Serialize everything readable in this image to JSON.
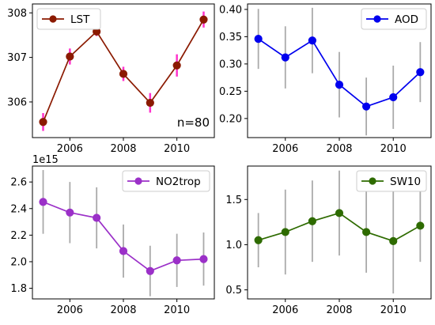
{
  "chart_data": [
    {
      "id": "lst",
      "type": "line",
      "x": [
        2005,
        2006,
        2007,
        2008,
        2009,
        2010,
        2011
      ],
      "series": [
        {
          "name": "LST",
          "values": [
            305.55,
            307.02,
            307.58,
            306.63,
            305.98,
            306.82,
            307.85
          ],
          "err": [
            0.2,
            0.18,
            0.1,
            0.16,
            0.22,
            0.25,
            0.18
          ]
        }
      ],
      "xticks": [
        2006,
        2008,
        2010
      ],
      "xtick_labels": [
        "2006",
        "2008",
        "2010"
      ],
      "yticks": [
        306,
        307,
        308
      ],
      "ytick_labels": [
        "306",
        "307",
        "308"
      ],
      "ylim": [
        305.2,
        308.2
      ],
      "xlim": [
        2004.6,
        2011.4
      ],
      "annotation": "n=80",
      "color": "#8b1a00",
      "err_color": "#ff33cc",
      "grid": false,
      "legend_placement": "top-left"
    },
    {
      "id": "aod",
      "type": "line",
      "x": [
        2005,
        2006,
        2007,
        2008,
        2009,
        2010,
        2011
      ],
      "series": [
        {
          "name": "AOD",
          "values": [
            0.346,
            0.312,
            0.343,
            0.262,
            0.222,
            0.239,
            0.285
          ],
          "err": [
            0.055,
            0.057,
            0.06,
            0.06,
            0.053,
            0.058,
            0.055
          ]
        }
      ],
      "xticks": [
        2006,
        2008,
        2010
      ],
      "xtick_labels": [
        "2006",
        "2008",
        "2010"
      ],
      "yticks": [
        0.2,
        0.25,
        0.3,
        0.35,
        0.4
      ],
      "ytick_labels": [
        "0.20",
        "0.25",
        "0.30",
        "0.35",
        "0.40"
      ],
      "ylim": [
        0.165,
        0.41
      ],
      "xlim": [
        2004.6,
        2011.4
      ],
      "color": "#0000ee",
      "err_color": "#aaaaaa",
      "grid": false,
      "legend_placement": "top-right"
    },
    {
      "id": "no2",
      "type": "line",
      "x": [
        2005,
        2006,
        2007,
        2008,
        2009,
        2010,
        2011
      ],
      "series": [
        {
          "name": "NO2trop",
          "values": [
            2.45,
            2.37,
            2.33,
            2.08,
            1.93,
            2.01,
            2.02
          ],
          "err": [
            0.24,
            0.23,
            0.23,
            0.2,
            0.19,
            0.2,
            0.2
          ]
        }
      ],
      "xticks": [
        2006,
        2008,
        2010
      ],
      "xtick_labels": [
        "2006",
        "2008",
        "2010"
      ],
      "yticks": [
        1.8,
        2.0,
        2.2,
        2.4,
        2.6
      ],
      "ytick_labels": [
        "1.8",
        "2.0",
        "2.2",
        "2.4",
        "2.6"
      ],
      "ylim": [
        1.72,
        2.72
      ],
      "xlim": [
        2004.6,
        2011.4
      ],
      "offset_label": "1e15",
      "color": "#9b30c8",
      "err_color": "#aaaaaa",
      "grid": false,
      "legend_placement": "top-right"
    },
    {
      "id": "sw10",
      "type": "line",
      "x": [
        2005,
        2006,
        2007,
        2008,
        2009,
        2010,
        2011
      ],
      "series": [
        {
          "name": "SW10",
          "values": [
            1.05,
            1.14,
            1.26,
            1.35,
            1.14,
            1.04,
            1.21
          ],
          "err": [
            0.3,
            0.47,
            0.45,
            0.47,
            0.45,
            0.58,
            0.4
          ]
        }
      ],
      "xticks": [
        2006,
        2008,
        2010
      ],
      "xtick_labels": [
        "2006",
        "2008",
        "2010"
      ],
      "yticks": [
        0.5,
        1.0,
        1.5
      ],
      "ytick_labels": [
        "0.5",
        "1.0",
        "1.5"
      ],
      "ylim": [
        0.4,
        1.87
      ],
      "xlim": [
        2004.6,
        2011.4
      ],
      "color": "#2e6b00",
      "err_color": "#aaaaaa",
      "grid": false,
      "legend_placement": "top-right"
    }
  ]
}
